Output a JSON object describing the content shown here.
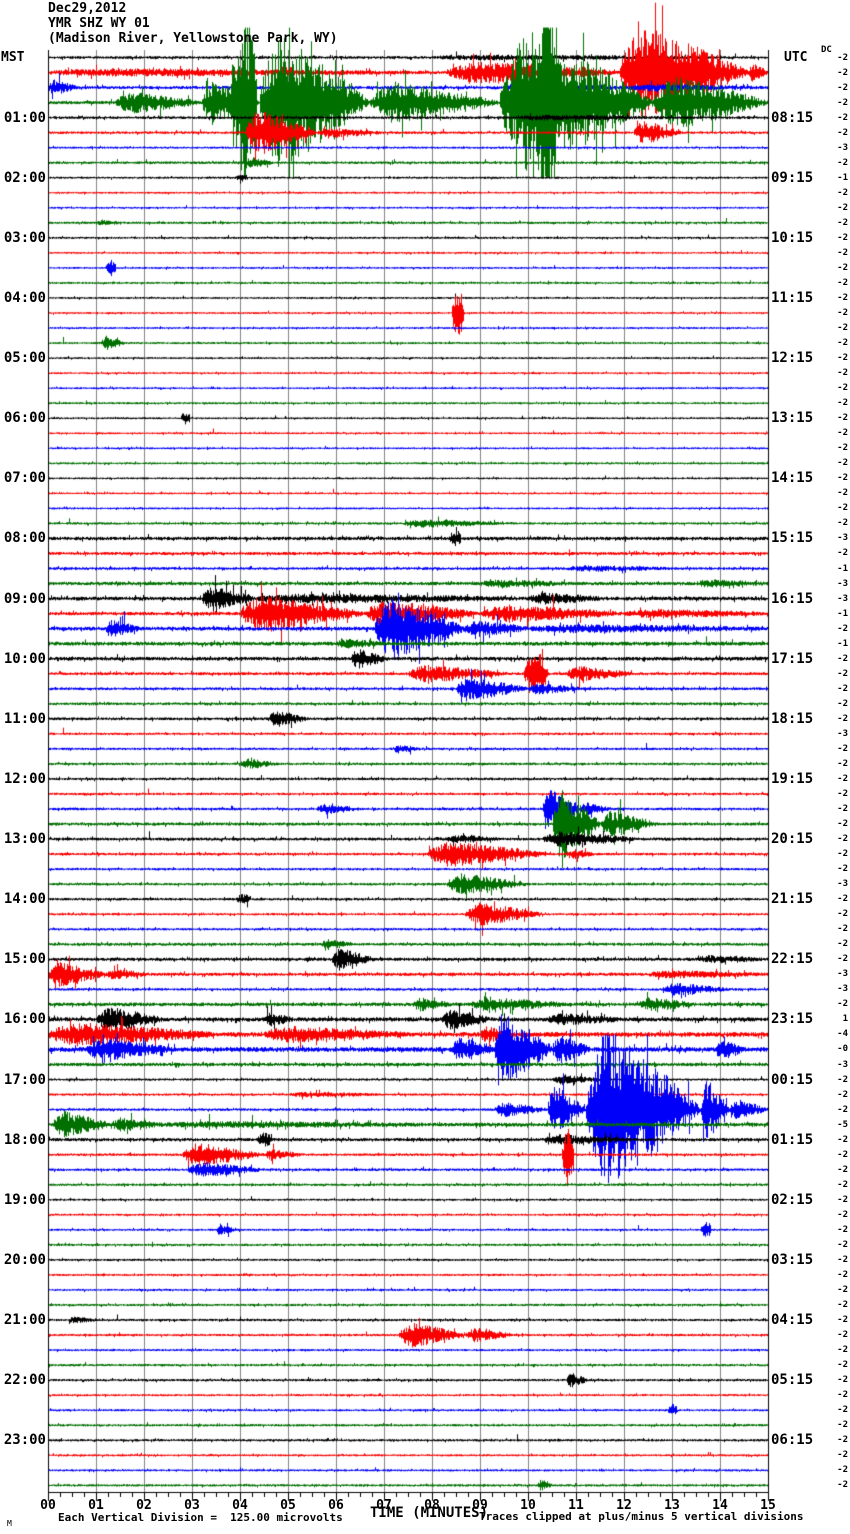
{
  "header": {
    "date": "Dec29,2012",
    "station": "YMR SHZ WY 01",
    "location": "(Madison River, Yellowstone Park, WY)"
  },
  "left_axis_label": "MST",
  "right_axis_label": "UTC",
  "dc_label": "DC",
  "footer": {
    "corner_glyph": "M",
    "division_note": "Each Vertical Division =  125.00 microvolts",
    "time_label": "TIME (MINUTES)",
    "clip_note": "Traces clipped at plus/minus 5 vertical divisions"
  },
  "chart_data": {
    "type": "seismogram-helicorder",
    "title": "YMR SHZ WY 01 (Madison River, Yellowstone Park, WY) Dec29,2012",
    "xlabel": "TIME (MINUTES)",
    "x_range_minutes": [
      0,
      15
    ],
    "x_ticks": [
      "00",
      "01",
      "02",
      "03",
      "04",
      "05",
      "06",
      "07",
      "08",
      "09",
      "10",
      "11",
      "12",
      "13",
      "14",
      "15"
    ],
    "minor_ticks_per_minute": 4,
    "minutes_per_line": 15,
    "lines_per_hour": 4,
    "clip_divisions": 5,
    "colors": {
      "black": "#000000",
      "red": "#fa0000",
      "blue": "#0000fa",
      "green": "#007000",
      "grid": "#828282"
    },
    "color_cycle": [
      "black",
      "red",
      "blue",
      "green"
    ],
    "rows": [
      {
        "dc": "-2",
        "n": 1.3,
        "ev": [
          [
            8,
            14,
            1.5
          ]
        ]
      },
      {
        "dc": "-2",
        "n": 1.5,
        "ev": [
          [
            0,
            8,
            2.5
          ],
          [
            8.3,
            11.9,
            9
          ],
          [
            11.9,
            14.6,
            42
          ],
          [
            14.6,
            15,
            8
          ]
        ]
      },
      {
        "dc": "-2",
        "n": 1.5,
        "ev": [
          [
            0,
            0.6,
            6
          ],
          [
            9.5,
            12,
            3.5
          ],
          [
            12,
            15,
            2
          ]
        ]
      },
      {
        "dc": "-2",
        "n": 1.5,
        "ev": [
          [
            1.4,
            3.2,
            9
          ],
          [
            3.2,
            4.4,
            20
          ],
          [
            3.8,
            4.35,
            75,
            1
          ],
          [
            4.4,
            6.7,
            62
          ],
          [
            6.7,
            9.4,
            18
          ],
          [
            9.4,
            12.6,
            66
          ],
          [
            10.25,
            10.6,
            75,
            1
          ],
          [
            12.6,
            15,
            24
          ]
        ]
      },
      {
        "mst": "01:00",
        "utc": "08:15",
        "dc": "-2",
        "n": 1.3,
        "ev": [
          [
            9.8,
            13,
            1.5
          ]
        ]
      },
      {
        "dc": "-2",
        "n": 1.2,
        "ev": [
          [
            4.1,
            5.6,
            20
          ],
          [
            5.6,
            7,
            4
          ],
          [
            12.2,
            13.2,
            10
          ]
        ]
      },
      {
        "dc": "-3",
        "n": 1.0,
        "ev": []
      },
      {
        "dc": "-2",
        "n": 1.2,
        "ev": [
          [
            4.1,
            4.7,
            4
          ]
        ]
      },
      {
        "mst": "02:00",
        "utc": "09:15",
        "dc": "-1",
        "n": 1.0,
        "ev": [
          [
            3.9,
            4.15,
            3,
            1
          ]
        ]
      },
      {
        "dc": "-2",
        "n": 0.9,
        "ev": []
      },
      {
        "dc": "-2",
        "n": 0.9,
        "ev": []
      },
      {
        "dc": "-2",
        "n": 1.1,
        "ev": [
          [
            1,
            1.5,
            2
          ]
        ]
      },
      {
        "mst": "03:00",
        "utc": "10:15",
        "dc": "-2",
        "n": 1.0,
        "ev": []
      },
      {
        "dc": "-2",
        "n": 0.9,
        "ev": []
      },
      {
        "dc": "-2",
        "n": 0.9,
        "ev": [
          [
            1.2,
            1.4,
            8,
            1
          ]
        ]
      },
      {
        "dc": "-2",
        "n": 1.0,
        "ev": []
      },
      {
        "mst": "04:00",
        "utc": "11:15",
        "dc": "-2",
        "n": 0.9,
        "ev": []
      },
      {
        "dc": "-2",
        "n": 0.9,
        "ev": [
          [
            8.4,
            8.65,
            24,
            1
          ]
        ]
      },
      {
        "dc": "-2",
        "n": 0.9,
        "ev": []
      },
      {
        "dc": "-2",
        "n": 1.0,
        "ev": [
          [
            1.1,
            1.6,
            6
          ]
        ]
      },
      {
        "mst": "05:00",
        "utc": "12:15",
        "dc": "-2",
        "n": 0.9,
        "ev": []
      },
      {
        "dc": "-2",
        "n": 0.9,
        "ev": []
      },
      {
        "dc": "-2",
        "n": 0.9,
        "ev": []
      },
      {
        "dc": "-2",
        "n": 1.0,
        "ev": []
      },
      {
        "mst": "06:00",
        "utc": "13:15",
        "dc": "-2",
        "n": 0.9,
        "ev": [
          [
            2.75,
            2.95,
            6,
            1
          ]
        ]
      },
      {
        "dc": "-2",
        "n": 0.9,
        "ev": []
      },
      {
        "dc": "-2",
        "n": 0.9,
        "ev": []
      },
      {
        "dc": "-2",
        "n": 1.0,
        "ev": []
      },
      {
        "mst": "07:00",
        "utc": "14:15",
        "dc": "-2",
        "n": 0.9,
        "ev": []
      },
      {
        "dc": "-2",
        "n": 0.9,
        "ev": []
      },
      {
        "dc": "-2",
        "n": 0.9,
        "ev": []
      },
      {
        "dc": "-2",
        "n": 1.1,
        "ev": [
          [
            7.4,
            9.6,
            3
          ]
        ]
      },
      {
        "mst": "08:00",
        "utc": "15:15",
        "dc": "-3",
        "n": 1.6,
        "ev": [
          [
            8.35,
            8.6,
            7,
            1
          ]
        ]
      },
      {
        "dc": "-2",
        "n": 1.4,
        "ev": []
      },
      {
        "dc": "-1",
        "n": 1.3,
        "ev": [
          [
            10.8,
            13,
            2
          ]
        ]
      },
      {
        "dc": "-3",
        "n": 1.6,
        "ev": [
          [
            9,
            11,
            2.5
          ],
          [
            13.5,
            15,
            2.5
          ]
        ]
      },
      {
        "mst": "09:00",
        "utc": "16:15",
        "dc": "-3",
        "n": 1.8,
        "ev": [
          [
            3.2,
            4.3,
            10
          ],
          [
            4.3,
            10,
            3
          ],
          [
            10,
            11.6,
            4
          ]
        ]
      },
      {
        "dc": "-1",
        "n": 1.6,
        "ev": [
          [
            4,
            6.6,
            16
          ],
          [
            6.6,
            9,
            11
          ],
          [
            9,
            12,
            7
          ],
          [
            12,
            15,
            3
          ]
        ]
      },
      {
        "dc": "-2",
        "n": 1.8,
        "ev": [
          [
            1.2,
            1.9,
            7
          ],
          [
            6.8,
            8.7,
            28
          ],
          [
            8.7,
            10,
            6
          ],
          [
            10,
            15,
            2.5
          ]
        ]
      },
      {
        "dc": "-1",
        "n": 1.8,
        "ev": [
          [
            6,
            7,
            3
          ]
        ]
      },
      {
        "mst": "10:00",
        "utc": "17:15",
        "dc": "-2",
        "n": 1.7,
        "ev": [
          [
            6.3,
            7.1,
            8
          ]
        ]
      },
      {
        "dc": "-2",
        "n": 1.4,
        "ev": [
          [
            7.5,
            9.6,
            7
          ],
          [
            9.9,
            10.4,
            20,
            1
          ],
          [
            10.8,
            12.2,
            6
          ]
        ]
      },
      {
        "dc": "-2",
        "n": 1.3,
        "ev": [
          [
            8.5,
            10,
            10
          ],
          [
            10,
            11.2,
            4
          ]
        ]
      },
      {
        "dc": "-2",
        "n": 1.3,
        "ev": []
      },
      {
        "mst": "11:00",
        "utc": "18:15",
        "dc": "-2",
        "n": 1.3,
        "ev": [
          [
            4.6,
            5.4,
            7
          ]
        ]
      },
      {
        "dc": "-3",
        "n": 1.1,
        "ev": []
      },
      {
        "dc": "-2",
        "n": 1.1,
        "ev": [
          [
            7.2,
            7.7,
            4
          ]
        ]
      },
      {
        "dc": "-2",
        "n": 1.2,
        "ev": [
          [
            4,
            4.8,
            4
          ]
        ]
      },
      {
        "mst": "12:00",
        "utc": "19:15",
        "dc": "-2",
        "n": 1.2,
        "ev": []
      },
      {
        "dc": "-2",
        "n": 1.1,
        "ev": []
      },
      {
        "dc": "-2",
        "n": 1.2,
        "ev": [
          [
            5.6,
            6.5,
            4
          ],
          [
            10.3,
            11.1,
            17
          ],
          [
            11.1,
            11.7,
            5
          ]
        ]
      },
      {
        "dc": "-2",
        "n": 1.4,
        "ev": [
          [
            10.5,
            11.5,
            32
          ],
          [
            11.5,
            12.7,
            11
          ]
        ]
      },
      {
        "mst": "13:00",
        "utc": "20:15",
        "dc": "-2",
        "n": 1.4,
        "ev": [
          [
            8.3,
            9.4,
            3
          ],
          [
            10.3,
            12.3,
            6
          ]
        ]
      },
      {
        "dc": "-2",
        "n": 1.2,
        "ev": [
          [
            7.9,
            10.4,
            11
          ],
          [
            10.8,
            11.4,
            4
          ]
        ]
      },
      {
        "dc": "-2",
        "n": 1.1,
        "ev": []
      },
      {
        "dc": "-3",
        "n": 1.2,
        "ev": [
          [
            8.3,
            10,
            9
          ]
        ]
      },
      {
        "mst": "14:00",
        "utc": "21:15",
        "dc": "-2",
        "n": 1.2,
        "ev": [
          [
            3.9,
            4.2,
            4,
            1
          ]
        ]
      },
      {
        "dc": "-2",
        "n": 1.1,
        "ev": [
          [
            8.7,
            10.3,
            10
          ]
        ]
      },
      {
        "dc": "-2",
        "n": 1.1,
        "ev": []
      },
      {
        "dc": "-2",
        "n": 1.4,
        "ev": [
          [
            5.7,
            6.3,
            4
          ]
        ]
      },
      {
        "mst": "15:00",
        "utc": "22:15",
        "dc": "-2",
        "n": 1.5,
        "ev": [
          [
            5.9,
            6.8,
            9
          ],
          [
            13.5,
            15,
            2.5
          ]
        ]
      },
      {
        "dc": "-3",
        "n": 1.5,
        "ev": [
          [
            0,
            1.2,
            10
          ],
          [
            1.2,
            2.1,
            4
          ],
          [
            12.5,
            15,
            2.5
          ]
        ]
      },
      {
        "dc": "-3",
        "n": 1.2,
        "ev": [
          [
            12.8,
            14.2,
            5
          ]
        ]
      },
      {
        "dc": "-2",
        "n": 1.7,
        "ev": [
          [
            7.6,
            8.4,
            5
          ],
          [
            8.8,
            10.8,
            5
          ],
          [
            12.3,
            13.5,
            5
          ]
        ]
      },
      {
        "mst": "16:00",
        "utc": "23:15",
        "dc": "1",
        "n": 1.9,
        "ev": [
          [
            1,
            2.4,
            10
          ],
          [
            4.5,
            5.1,
            5
          ],
          [
            8.2,
            9.2,
            8
          ],
          [
            10.4,
            12,
            4
          ]
        ]
      },
      {
        "dc": "-4",
        "n": 2.2,
        "ev": [
          [
            0,
            3.5,
            9
          ],
          [
            4.5,
            7.5,
            6
          ],
          [
            9,
            9.7,
            6
          ]
        ]
      },
      {
        "dc": "-0",
        "n": 2.2,
        "ev": [
          [
            0.8,
            2.6,
            9
          ],
          [
            8.4,
            9.3,
            10
          ],
          [
            9.3,
            10.5,
            32
          ],
          [
            10.5,
            11.3,
            12
          ],
          [
            13.9,
            14.5,
            8
          ]
        ]
      },
      {
        "dc": "-3",
        "n": 1.6,
        "ev": []
      },
      {
        "mst": "17:00",
        "utc": "00:15",
        "dc": "-2",
        "n": 1.1,
        "ev": [
          [
            10.5,
            11.7,
            3
          ]
        ]
      },
      {
        "dc": "-2",
        "n": 1.1,
        "ev": [
          [
            5,
            7,
            1.5
          ]
        ]
      },
      {
        "dc": "-2",
        "n": 1.2,
        "ev": [
          [
            9.3,
            10.4,
            6
          ],
          [
            10.4,
            11.2,
            22
          ],
          [
            11.2,
            13.6,
            75
          ],
          [
            13.6,
            14.2,
            28
          ],
          [
            14.2,
            15,
            9
          ]
        ]
      },
      {
        "dc": "-5",
        "n": 1.8,
        "ev": [
          [
            0.1,
            1.3,
            11
          ],
          [
            1.3,
            2.4,
            5
          ],
          [
            2.4,
            8,
            1.5
          ]
        ]
      },
      {
        "mst": "18:00",
        "utc": "01:15",
        "dc": "-2",
        "n": 1.5,
        "ev": [
          [
            4.35,
            4.65,
            6,
            1
          ],
          [
            10.3,
            12.2,
            3.5
          ]
        ]
      },
      {
        "dc": "-2",
        "n": 1.2,
        "ev": [
          [
            2.8,
            4.5,
            10
          ],
          [
            4.5,
            5.3,
            4
          ],
          [
            10.7,
            10.95,
            30,
            1
          ]
        ]
      },
      {
        "dc": "-2",
        "n": 1.2,
        "ev": [
          [
            2.9,
            4.5,
            6
          ]
        ]
      },
      {
        "dc": "-2",
        "n": 1.2,
        "ev": []
      },
      {
        "mst": "19:00",
        "utc": "02:15",
        "dc": "-2",
        "n": 1.0,
        "ev": []
      },
      {
        "dc": "-2",
        "n": 1.0,
        "ev": []
      },
      {
        "dc": "-2",
        "n": 1.0,
        "ev": [
          [
            3.5,
            3.9,
            5
          ],
          [
            13.6,
            13.8,
            8,
            1
          ]
        ]
      },
      {
        "dc": "-2",
        "n": 1.1,
        "ev": []
      },
      {
        "mst": "20:00",
        "utc": "03:15",
        "dc": "-2",
        "n": 1.0,
        "ev": []
      },
      {
        "dc": "-2",
        "n": 1.0,
        "ev": []
      },
      {
        "dc": "-2",
        "n": 1.0,
        "ev": []
      },
      {
        "dc": "-2",
        "n": 1.1,
        "ev": []
      },
      {
        "mst": "21:00",
        "utc": "04:15",
        "dc": "-2",
        "n": 1.1,
        "ev": [
          [
            0.4,
            1.1,
            2
          ]
        ]
      },
      {
        "dc": "-2",
        "n": 1.1,
        "ev": [
          [
            7.3,
            8.7,
            11
          ],
          [
            8.7,
            9.7,
            6
          ]
        ]
      },
      {
        "dc": "-2",
        "n": 1.0,
        "ev": []
      },
      {
        "dc": "-2",
        "n": 1.1,
        "ev": []
      },
      {
        "mst": "22:00",
        "utc": "05:15",
        "dc": "-2",
        "n": 1.1,
        "ev": [
          [
            10.8,
            11.25,
            6
          ]
        ]
      },
      {
        "dc": "-2",
        "n": 1.0,
        "ev": []
      },
      {
        "dc": "-2",
        "n": 1.0,
        "ev": [
          [
            12.9,
            13.1,
            5,
            1
          ]
        ]
      },
      {
        "dc": "-2",
        "n": 1.1,
        "ev": []
      },
      {
        "mst": "23:00",
        "utc": "06:15",
        "dc": "-2",
        "n": 1.1,
        "ev": []
      },
      {
        "dc": "-2",
        "n": 1.0,
        "ev": []
      },
      {
        "dc": "-2",
        "n": 1.0,
        "ev": []
      },
      {
        "dc": "-2",
        "n": 1.1,
        "ev": [
          [
            10.2,
            10.5,
            5
          ]
        ]
      }
    ]
  }
}
